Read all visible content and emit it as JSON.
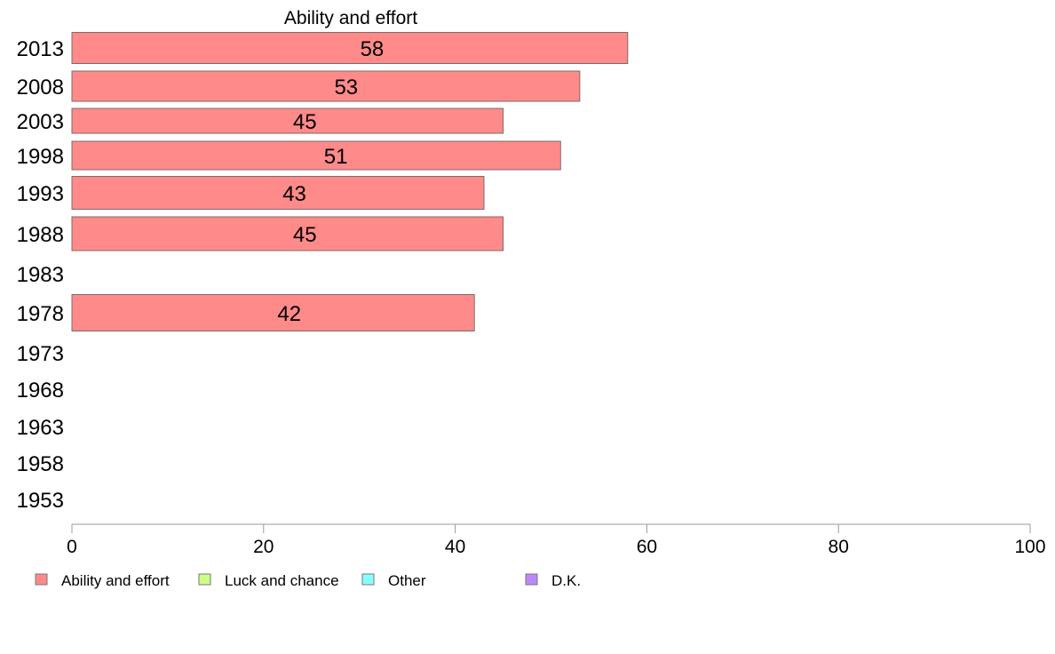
{
  "chart_data": {
    "type": "bar",
    "orientation": "horizontal",
    "title": "Ability and effort",
    "categories": [
      "2013",
      "2008",
      "2003",
      "1998",
      "1993",
      "1988",
      "1983",
      "1978",
      "1973",
      "1968",
      "1963",
      "1958",
      "1953"
    ],
    "series": [
      {
        "name": "Ability and effort",
        "values": [
          58,
          53,
          45,
          51,
          43,
          45,
          null,
          42,
          null,
          null,
          null,
          null,
          null
        ],
        "color": "#ff8a8a"
      }
    ],
    "xlim": [
      0,
      100
    ],
    "xticks": [
      0,
      20,
      40,
      60,
      80,
      100
    ],
    "xlabel": "",
    "ylabel": "",
    "grid": false,
    "legend_position": "bottom-left",
    "legend": [
      {
        "name": "Ability and effort",
        "color": "#ff8a8a"
      },
      {
        "name": "Luck and chance",
        "color": "#ccff88"
      },
      {
        "name": "Other",
        "color": "#88ffff"
      },
      {
        "name": "D.K.",
        "color": "#bb88ff"
      }
    ]
  }
}
